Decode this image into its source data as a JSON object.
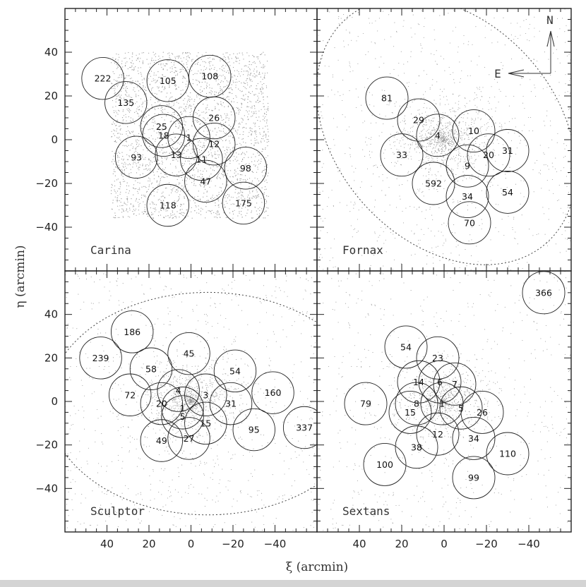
{
  "chart_data": {
    "type": "scatter",
    "xlabel": "ξ (arcmin)",
    "ylabel": "η (arcmin)",
    "compass": {
      "north": "N",
      "east": "E"
    },
    "panels": [
      {
        "name": "Carina",
        "xlim": [
          60,
          -60
        ],
        "ylim": [
          -60,
          60
        ],
        "tidal_ellipse": null,
        "background": {
          "xrange": [
            38,
            -37
          ],
          "yrange": [
            -36,
            40
          ]
        },
        "fields": [
          {
            "label": "222",
            "x": 42,
            "y": 28
          },
          {
            "label": "105",
            "x": 11,
            "y": 27
          },
          {
            "label": "108",
            "x": -9,
            "y": 29
          },
          {
            "label": "135",
            "x": 31,
            "y": 17
          },
          {
            "label": "26",
            "x": -11,
            "y": 10
          },
          {
            "label": "25",
            "x": 14,
            "y": 6
          },
          {
            "label": "18",
            "x": 13,
            "y": 2
          },
          {
            "label": "1",
            "x": 1,
            "y": 1
          },
          {
            "label": "12",
            "x": -11,
            "y": -2
          },
          {
            "label": "93",
            "x": 26,
            "y": -8
          },
          {
            "label": "13",
            "x": 7,
            "y": -7
          },
          {
            "label": "11",
            "x": -5,
            "y": -9
          },
          {
            "label": "98",
            "x": -26,
            "y": -13
          },
          {
            "label": "47",
            "x": -7,
            "y": -19
          },
          {
            "label": "118",
            "x": 11,
            "y": -30
          },
          {
            "label": "175",
            "x": -25,
            "y": -29
          }
        ]
      },
      {
        "name": "Fornax",
        "xlim": [
          60,
          -60
        ],
        "ylim": [
          -60,
          60
        ],
        "tidal_ellipse": {
          "cx": -1,
          "cy": 4,
          "a": 71,
          "b": 52,
          "angle": 48
        },
        "background": {
          "cx": 0,
          "cy": 0,
          "r": 60
        },
        "fields": [
          {
            "label": "81",
            "x": 27,
            "y": 19
          },
          {
            "label": "29",
            "x": 12,
            "y": 9
          },
          {
            "label": "4",
            "x": 3,
            "y": 2
          },
          {
            "label": "10",
            "x": -14,
            "y": 4
          },
          {
            "label": "33",
            "x": 20,
            "y": -7
          },
          {
            "label": "31",
            "x": -30,
            "y": -5
          },
          {
            "label": "20",
            "x": -21,
            "y": -7
          },
          {
            "label": "9",
            "x": -11,
            "y": -12
          },
          {
            "label": "592",
            "x": 5,
            "y": -20
          },
          {
            "label": "54",
            "x": -30,
            "y": -24
          },
          {
            "label": "34",
            "x": -11,
            "y": -26
          },
          {
            "label": "70",
            "x": -12,
            "y": -38
          }
        ]
      },
      {
        "name": "Sculptor",
        "xlim": [
          60,
          -60
        ],
        "ylim": [
          -60,
          60
        ],
        "tidal_ellipse": {
          "cx": -8,
          "cy": -1,
          "a": 76,
          "b": 53,
          "angle": 0
        },
        "background": {
          "cx": 0,
          "cy": 0,
          "r": 60
        },
        "fields": [
          {
            "label": "186",
            "x": 28,
            "y": 32
          },
          {
            "label": "239",
            "x": 43,
            "y": 20
          },
          {
            "label": "45",
            "x": 1,
            "y": 22
          },
          {
            "label": "58",
            "x": 19,
            "y": 15
          },
          {
            "label": "54",
            "x": -21,
            "y": 14
          },
          {
            "label": "160",
            "x": -39,
            "y": 4
          },
          {
            "label": "72",
            "x": 29,
            "y": 3
          },
          {
            "label": "4",
            "x": 6,
            "y": 5
          },
          {
            "label": "3",
            "x": -7,
            "y": 3
          },
          {
            "label": "20",
            "x": 14,
            "y": -1
          },
          {
            "label": "31",
            "x": -19,
            "y": -1
          },
          {
            "label": "1",
            "x": 4,
            "y": -3
          },
          {
            "label": "5",
            "x": 4,
            "y": -7
          },
          {
            "label": "15",
            "x": -7,
            "y": -10
          },
          {
            "label": "95",
            "x": -30,
            "y": -13
          },
          {
            "label": "337",
            "x": -54,
            "y": -12
          },
          {
            "label": "49",
            "x": 14,
            "y": -18
          },
          {
            "label": "27",
            "x": 1,
            "y": -17
          }
        ]
      },
      {
        "name": "Sextans",
        "xlim": [
          60,
          -60
        ],
        "ylim": [
          -60,
          60
        ],
        "tidal_ellipse": null,
        "background": {
          "cx": 0,
          "cy": 0,
          "r": 60
        },
        "fields": [
          {
            "label": "366",
            "x": -47,
            "y": 50
          },
          {
            "label": "54",
            "x": 18,
            "y": 25
          },
          {
            "label": "23",
            "x": 3,
            "y": 20
          },
          {
            "label": "14",
            "x": 12,
            "y": 9
          },
          {
            "label": "6",
            "x": 2,
            "y": 9
          },
          {
            "label": "7",
            "x": -5,
            "y": 8
          },
          {
            "label": "79",
            "x": 37,
            "y": -1
          },
          {
            "label": "8",
            "x": 13,
            "y": -1
          },
          {
            "label": "1",
            "x": 1,
            "y": -1
          },
          {
            "label": "15",
            "x": 16,
            "y": -5
          },
          {
            "label": "5",
            "x": -8,
            "y": -3
          },
          {
            "label": "26",
            "x": -18,
            "y": -5
          },
          {
            "label": "12",
            "x": 3,
            "y": -15
          },
          {
            "label": "34",
            "x": -14,
            "y": -17
          },
          {
            "label": "38",
            "x": 13,
            "y": -21
          },
          {
            "label": "110",
            "x": -30,
            "y": -24
          },
          {
            "label": "100",
            "x": 28,
            "y": -29
          },
          {
            "label": "99",
            "x": -14,
            "y": -35
          }
        ]
      }
    ],
    "xticks": [
      40,
      20,
      0,
      -20,
      -40
    ],
    "yticks": [
      40,
      20,
      0,
      -20,
      -40
    ]
  }
}
